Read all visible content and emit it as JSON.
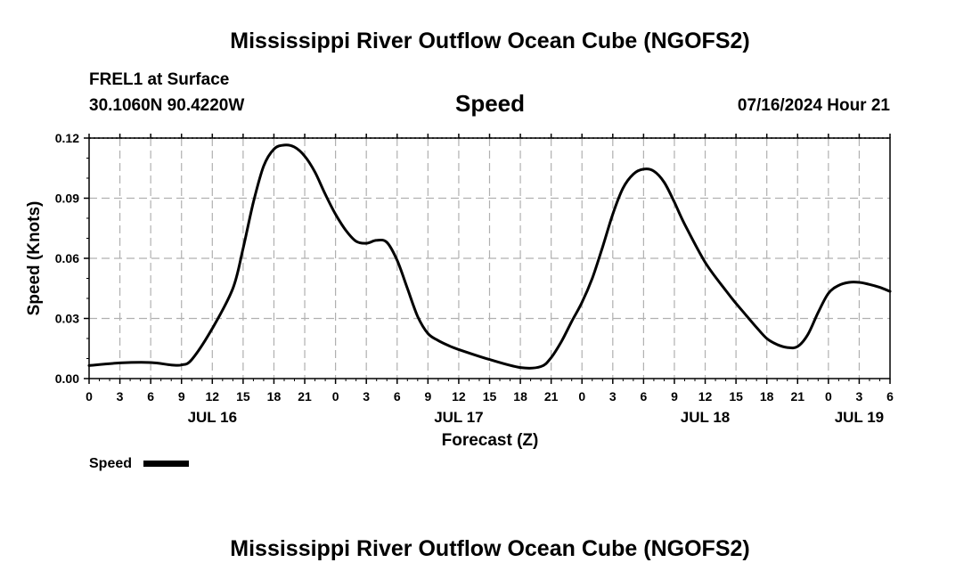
{
  "chart_data": {
    "type": "line",
    "title": "Mississippi River Outflow Ocean Cube (NGOFS2)",
    "footer_title": "Mississippi River Outflow Ocean Cube (NGOFS2)",
    "subtitle": "Speed",
    "station": "FREL1 at Surface",
    "location": "30.1060N  90.4220W",
    "timestamp": "07/16/2024 Hour 21",
    "xlabel": "Forecast (Z)",
    "ylabel": "Speed (Knots)",
    "units": "hours from 00Z JUL 16",
    "xlim": [
      0,
      78
    ],
    "ylim": [
      0,
      0.12
    ],
    "y_ticks": [
      0.0,
      0.03,
      0.06,
      0.09,
      0.12
    ],
    "y_tick_labels": [
      "0.00",
      "0.03",
      "0.06",
      "0.09",
      "0.12"
    ],
    "x_ticks": [
      0,
      3,
      6,
      9,
      12,
      15,
      18,
      21,
      24,
      27,
      30,
      33,
      36,
      39,
      42,
      45,
      48,
      51,
      54,
      57,
      60,
      63,
      66,
      69,
      72,
      75,
      78
    ],
    "x_tick_labels": [
      "0",
      "3",
      "6",
      "9",
      "12",
      "15",
      "18",
      "21",
      "0",
      "3",
      "6",
      "9",
      "12",
      "15",
      "18",
      "21",
      "0",
      "3",
      "6",
      "9",
      "12",
      "15",
      "18",
      "21",
      "0",
      "3",
      "6"
    ],
    "date_labels": [
      {
        "label": "JUL 16",
        "x": 12
      },
      {
        "label": "JUL 17",
        "x": 36
      },
      {
        "label": "JUL 18",
        "x": 60
      },
      {
        "label": "JUL 19",
        "x": 75
      }
    ],
    "grid": true,
    "legend": {
      "label": "Speed",
      "placement": "bottom-left"
    },
    "series": [
      {
        "name": "Speed",
        "color": "#000000",
        "x": [
          0,
          3,
          6,
          8,
          9,
          10,
          12,
          14,
          15,
          16,
          17,
          18,
          19,
          20,
          21,
          22,
          23,
          24,
          25,
          26,
          27,
          28,
          29,
          30,
          31,
          32,
          33,
          34,
          35,
          36,
          39,
          42,
          44,
          45,
          46,
          47,
          48,
          49,
          50,
          51,
          52,
          53,
          54,
          55,
          56,
          57,
          58,
          60,
          62,
          63,
          64,
          65,
          66,
          67,
          68,
          69,
          70,
          71,
          72,
          73,
          74,
          75,
          76,
          77,
          78
        ],
        "values": [
          0.0065,
          0.0078,
          0.008,
          0.0068,
          0.0068,
          0.0095,
          0.025,
          0.045,
          0.065,
          0.088,
          0.106,
          0.1145,
          0.1165,
          0.1155,
          0.111,
          0.103,
          0.092,
          0.082,
          0.074,
          0.0685,
          0.0675,
          0.069,
          0.068,
          0.059,
          0.045,
          0.031,
          0.0225,
          0.019,
          0.0165,
          0.0145,
          0.0095,
          0.0055,
          0.006,
          0.0105,
          0.0185,
          0.0285,
          0.038,
          0.05,
          0.0655,
          0.082,
          0.095,
          0.102,
          0.1045,
          0.1035,
          0.098,
          0.088,
          0.077,
          0.058,
          0.044,
          0.0375,
          0.0315,
          0.0255,
          0.02,
          0.017,
          0.0155,
          0.016,
          0.022,
          0.033,
          0.0425,
          0.0465,
          0.048,
          0.048,
          0.047,
          0.0455,
          0.0435
        ]
      }
    ]
  }
}
